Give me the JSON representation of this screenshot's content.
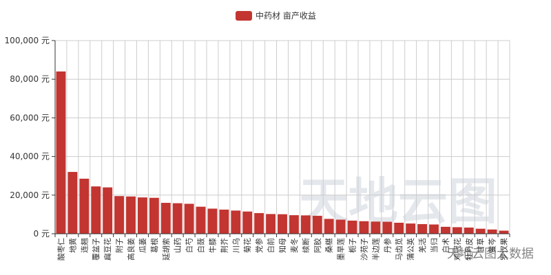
{
  "colors": {
    "bar": "#c23531",
    "grid": "#cccccc",
    "axis": "#333333"
  },
  "watermark": {
    "large_text": "天地云图",
    "small_text": "天地云图大数据"
  },
  "chart_data": {
    "type": "bar",
    "title": "",
    "xlabel": "",
    "ylabel": "",
    "ylim": [
      0,
      100000
    ],
    "yticks": [
      0,
      20000,
      40000,
      60000,
      80000,
      100000
    ],
    "ytick_labels": [
      "0 元",
      "20,000 元",
      "40,000 元",
      "60,000 元",
      "80,000 元",
      "100,000 元"
    ],
    "grid": true,
    "legend_position": "top-center",
    "categories": [
      "酸枣仁",
      "地黄",
      "连翘",
      "覆盆子",
      "扁豆花",
      "附子",
      "高良姜",
      "瓜蒌",
      "葛根",
      "延胡索",
      "山药",
      "白芍",
      "白蔹",
      "牛膝",
      "荆芥",
      "川乌",
      "菊花",
      "党参",
      "白前",
      "知母",
      "麦冬",
      "续断",
      "阿胶",
      "桑椹",
      "墨旱莲",
      "栀子",
      "沙苑子",
      "半边莲",
      "丹参",
      "马齿苋",
      "蒲公英",
      "羌活",
      "当归",
      "白术",
      "鸡冠花",
      "牡丹皮",
      "甘草",
      "黄芩",
      "罗汉果"
    ],
    "series": [
      {
        "name": "中药材 亩产收益",
        "values": [
          84000,
          32000,
          28500,
          24500,
          24000,
          19500,
          19300,
          18800,
          18600,
          16000,
          15800,
          15500,
          14000,
          13000,
          12500,
          12000,
          11500,
          10700,
          10200,
          10100,
          9600,
          9500,
          9300,
          7700,
          7300,
          6800,
          6500,
          6300,
          6200,
          5700,
          5300,
          5000,
          4800,
          3600,
          3400,
          3200,
          2600,
          2200,
          1600
        ]
      }
    ]
  }
}
